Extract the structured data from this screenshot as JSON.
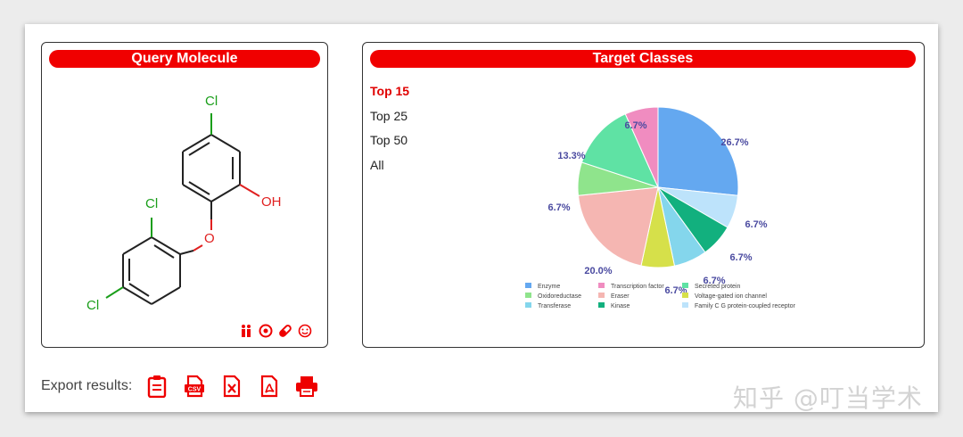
{
  "query_panel": {
    "title": "Query Molecule",
    "atoms": [
      "Cl",
      "OH",
      "Cl",
      "O",
      "Cl"
    ],
    "action_icons": [
      "person-icon",
      "target-icon",
      "pill-icon",
      "smiley-icon"
    ]
  },
  "target_panel": {
    "title": "Target Classes",
    "options": [
      "Top 15",
      "Top 25",
      "Top 50",
      "All"
    ],
    "selected": "Top 15"
  },
  "chart_data": {
    "type": "pie",
    "title": "",
    "slices": [
      {
        "name": "Enzyme",
        "value": 26.7,
        "label": "26.7%",
        "color": "#64a8f0"
      },
      {
        "name": "Family C G protein-coupled receptor",
        "value": 6.7,
        "label": "6.7%",
        "color": "#bde3fb"
      },
      {
        "name": "Kinase",
        "value": 6.7,
        "label": "6.7%",
        "color": "#12b07e"
      },
      {
        "name": "Transferase",
        "value": 6.7,
        "label": "6.7%",
        "color": "#84d6ec"
      },
      {
        "name": "Voltage-gated ion channel",
        "value": 6.7,
        "label": "6.7%",
        "color": "#d6e04a"
      },
      {
        "name": "Eraser",
        "value": 20.0,
        "label": "20.0%",
        "color": "#f5b6b2"
      },
      {
        "name": "Oxidoreductase",
        "value": 6.7,
        "label": "6.7%",
        "color": "#8fe48c"
      },
      {
        "name": "Secreted protein",
        "value": 13.3,
        "label": "13.3%",
        "color": "#5fe2a4"
      },
      {
        "name": "Transcription factor",
        "value": 6.7,
        "label": "6.7%",
        "color": "#f08cc0"
      }
    ],
    "legend": [
      "Enzyme",
      "Transcription factor",
      "Secreted protein",
      "Oxidoreductase",
      "Eraser",
      "Voltage-gated ion channel",
      "Transferase",
      "Kinase",
      "Family C G protein-coupled receptor"
    ],
    "legend_placement": "bottom"
  },
  "export": {
    "label": "Export results:",
    "buttons": [
      "clipboard-icon",
      "csv-icon",
      "excel-icon",
      "pdf-icon",
      "print-icon"
    ]
  },
  "watermark": "知乎 @叮当学术",
  "colors": {
    "accent": "#f00000",
    "chlorine": "#1a9e1a",
    "oxygen": "#e02020"
  }
}
